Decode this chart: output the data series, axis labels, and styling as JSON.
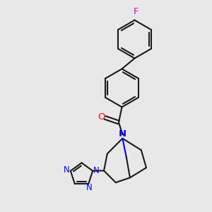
{
  "bg_color": "#e8e8e8",
  "bond_color": "#1a1a1a",
  "N_color": "#0000ff",
  "O_color": "#ff0000",
  "F_color": "#cc00cc",
  "lw": 1.5,
  "figsize": [
    3.0,
    3.0
  ],
  "dpi": 100,
  "xlim": [
    0,
    10
  ],
  "ylim": [
    0,
    10
  ]
}
